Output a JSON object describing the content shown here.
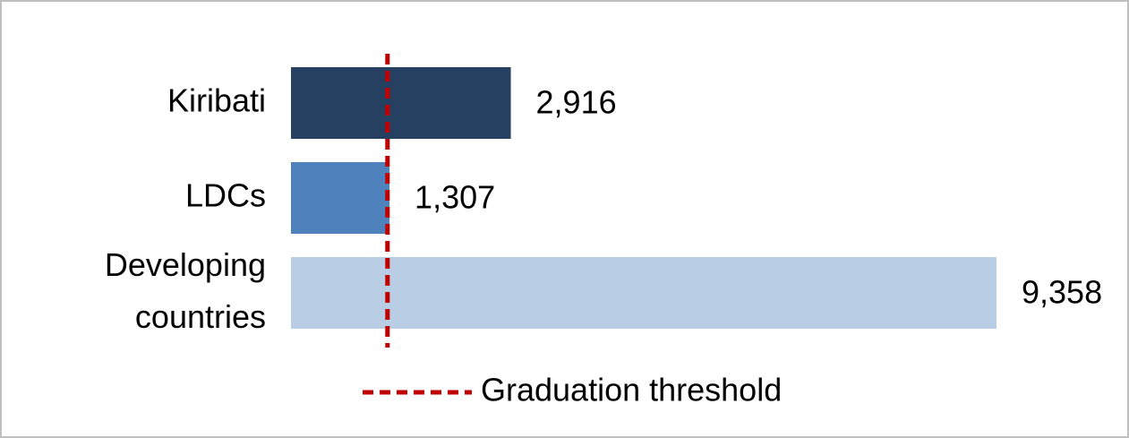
{
  "chart_data": {
    "type": "bar",
    "orientation": "horizontal",
    "categories": [
      "Kiribati",
      "LDCs",
      "Developing countries"
    ],
    "values": [
      2916,
      1307,
      9358
    ],
    "value_labels": [
      "2,916",
      "1,307",
      "9,358"
    ],
    "colors": [
      "#264061",
      "#4f81bd",
      "#b9cde5"
    ],
    "threshold": {
      "value": 1280,
      "label": "Graduation threshold",
      "color": "#c00000"
    }
  }
}
